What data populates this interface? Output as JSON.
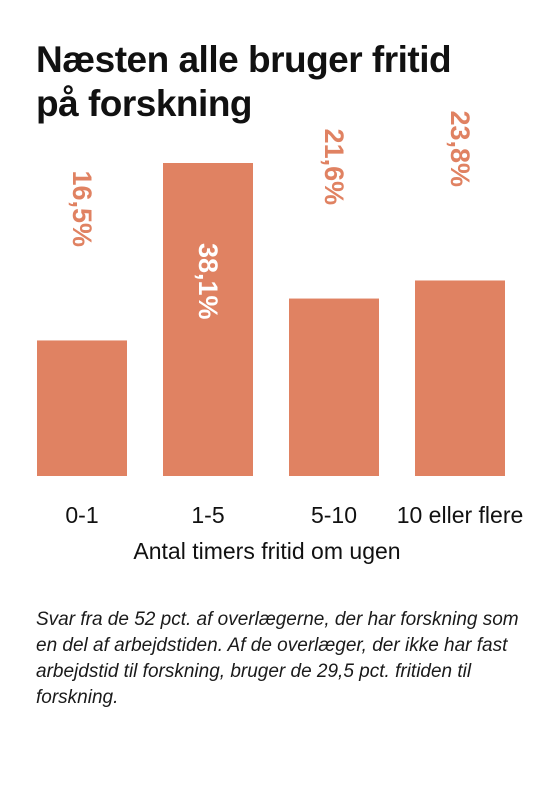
{
  "title": {
    "line1": "Næsten alle bruger fritid",
    "line2": "på forskning"
  },
  "footnote": "Svar fra de 52 pct. af overlægerne, der har forskning som en del af arbejdstiden. Af de overlæger, der ikke har fast arbejdstid til forskning, bruger de 29,5 pct. fritiden til forskning.",
  "colors": {
    "bar": "#e08262",
    "label_outside": "#e08262",
    "label_inside": "#ffffff",
    "text": "#111111"
  },
  "chart_data": {
    "type": "bar",
    "title": "Næsten alle bruger fritid på forskning",
    "xlabel": "Antal timers fritid om ugen",
    "ylabel": "",
    "categories": [
      "0-1",
      "1-5",
      "5-10",
      "10 eller flere"
    ],
    "values": [
      16.5,
      38.1,
      21.6,
      23.8
    ],
    "value_labels": [
      "16,5%",
      "38,1%",
      "21,6%",
      "23,8%"
    ],
    "ylim": [
      0,
      38.1
    ],
    "grid": false,
    "legend": "none",
    "label_orientation": "rotated-90-clockwise"
  }
}
